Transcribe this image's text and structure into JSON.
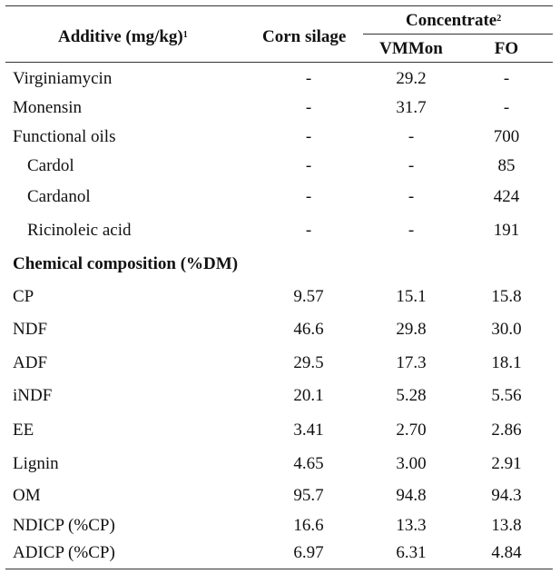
{
  "header": {
    "additive": "Additive (mg/kg)",
    "additive_sup": "1",
    "corn_silage": "Corn silage",
    "concentrate": "Concentrate",
    "concentrate_sup": "2",
    "vmmon": "VMMon",
    "fo": "FO"
  },
  "additive_rows": [
    {
      "label": "Virginiamycin",
      "corn": "-",
      "vmmon": "29.2",
      "fo": "-"
    },
    {
      "label": "Monensin",
      "corn": "-",
      "vmmon": "31.7",
      "fo": "-"
    },
    {
      "label": "Functional oils",
      "corn": "-",
      "vmmon": "-",
      "fo": "700"
    },
    {
      "label": "Cardol",
      "corn": "-",
      "vmmon": "-",
      "fo": "85"
    },
    {
      "label": "Cardanol",
      "corn": "-",
      "vmmon": "-",
      "fo": "424"
    },
    {
      "label": "Ricinoleic acid",
      "corn": "-",
      "vmmon": "-",
      "fo": "191"
    }
  ],
  "section_heading": "Chemical composition (%DM)",
  "composition_rows": [
    {
      "label": "CP",
      "corn": "9.57",
      "vmmon": "15.1",
      "fo": "15.8"
    },
    {
      "label": "NDF",
      "corn": "46.6",
      "vmmon": "29.8",
      "fo": "30.0"
    },
    {
      "label": "ADF",
      "corn": "29.5",
      "vmmon": "17.3",
      "fo": "18.1"
    },
    {
      "label": "iNDF",
      "corn": "20.1",
      "vmmon": "5.28",
      "fo": "5.56"
    },
    {
      "label": "EE",
      "corn": "3.41",
      "vmmon": "2.70",
      "fo": "2.86"
    },
    {
      "label": "Lignin",
      "corn": "4.65",
      "vmmon": "3.00",
      "fo": "2.91"
    },
    {
      "label": "OM",
      "corn": "95.7",
      "vmmon": "94.8",
      "fo": "94.3"
    },
    {
      "label": "NDICP (%CP)",
      "corn": "16.6",
      "vmmon": "13.3",
      "fo": "13.8"
    },
    {
      "label": "ADICP (%CP)",
      "corn": "6.97",
      "vmmon": "6.31",
      "fo": "4.84"
    }
  ]
}
